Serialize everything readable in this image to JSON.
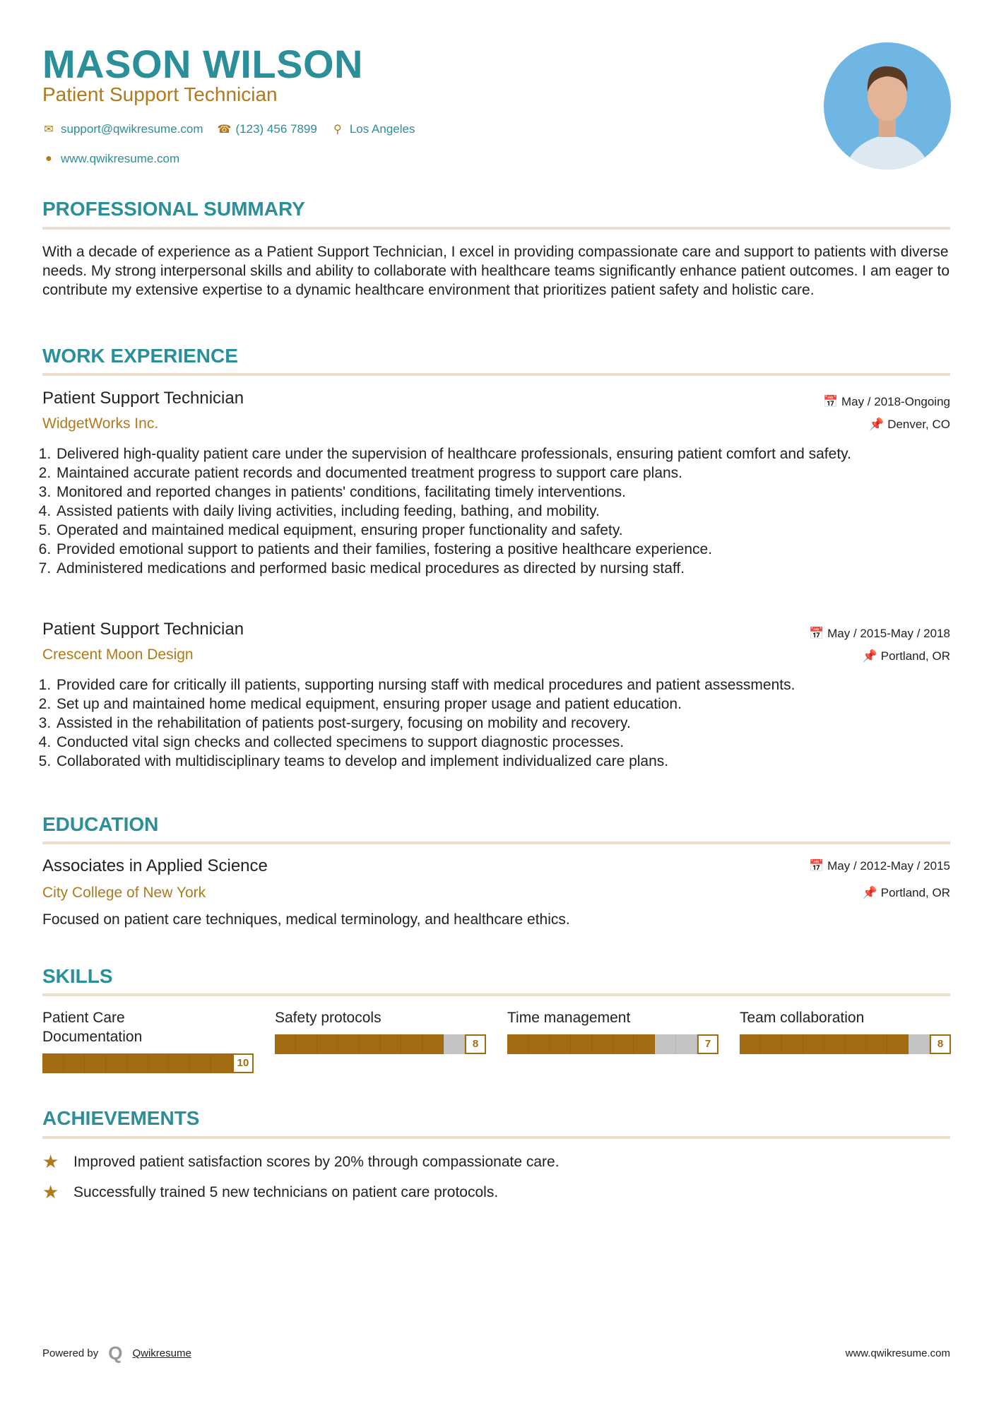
{
  "header": {
    "name": "MASON WILSON",
    "title": "Patient Support Technician",
    "email": "support@qwikresume.com",
    "phone": "(123) 456 7899",
    "location": "Los Angeles",
    "website": "www.qwikresume.com",
    "icons": {
      "email": "envelope-icon",
      "phone": "phone-icon",
      "location": "map-pin-icon",
      "website": "globe-icon"
    }
  },
  "colors": {
    "accent": "#2a8f99",
    "gold": "#a36b12",
    "rule": "#ecdccb"
  },
  "summary": {
    "heading": "PROFESSIONAL SUMMARY",
    "text": "With a decade of experience as a Patient Support Technician, I excel in providing compassionate care and support to patients with diverse needs. My strong interpersonal skills and ability to collaborate with healthcare teams significantly enhance patient outcomes. I am eager to contribute my extensive expertise to a dynamic healthcare environment that prioritizes patient safety and holistic care."
  },
  "work": {
    "heading": "WORK EXPERIENCE",
    "jobs": [
      {
        "title": "Patient Support Technician",
        "company": "WidgetWorks Inc.",
        "dates": "May / 2018-Ongoing",
        "location": "Denver, CO",
        "bullets": [
          "Delivered high-quality patient care under the supervision of healthcare professionals, ensuring patient comfort and safety.",
          "Maintained accurate patient records and documented treatment progress to support care plans.",
          "Monitored and reported changes in patients' conditions, facilitating timely interventions.",
          "Assisted patients with daily living activities, including feeding, bathing, and mobility.",
          "Operated and maintained medical equipment, ensuring proper functionality and safety.",
          "Provided emotional support to patients and their families, fostering a positive healthcare experience.",
          "Administered medications and performed basic medical procedures as directed by nursing staff."
        ]
      },
      {
        "title": "Patient Support Technician",
        "company": "Crescent Moon Design",
        "dates": "May / 2015-May / 2018",
        "location": "Portland, OR",
        "bullets": [
          "Provided care for critically ill patients, supporting nursing staff with medical procedures and patient assessments.",
          "Set up and maintained home medical equipment, ensuring proper usage and patient education.",
          "Assisted in the rehabilitation of patients post-surgery, focusing on mobility and recovery.",
          "Conducted vital sign checks and collected specimens to support diagnostic processes.",
          "Collaborated with multidisciplinary teams to develop and implement individualized care plans."
        ]
      }
    ]
  },
  "education": {
    "heading": "EDUCATION",
    "degree": "Associates in Applied Science",
    "school": "City College of New York",
    "dates": "May / 2012-May / 2015",
    "location": "Portland, OR",
    "description": "Focused on patient care techniques, medical terminology, and healthcare ethics."
  },
  "skills": {
    "heading": "SKILLS",
    "max": 10,
    "items": [
      {
        "name": "Patient Care Documentation",
        "level": 10
      },
      {
        "name": "Safety protocols",
        "level": 8
      },
      {
        "name": "Time management",
        "level": 7
      },
      {
        "name": "Team collaboration",
        "level": 8
      }
    ]
  },
  "achievements": {
    "heading": "ACHIEVEMENTS",
    "icon": "star-icon",
    "items": [
      "Improved patient satisfaction scores by 20% through compassionate care.",
      "Successfully trained 5 new technicians on patient care protocols."
    ]
  },
  "footer": {
    "powered_by": "Powered by",
    "brand": "Qwikresume",
    "website": "www.qwikresume.com"
  }
}
